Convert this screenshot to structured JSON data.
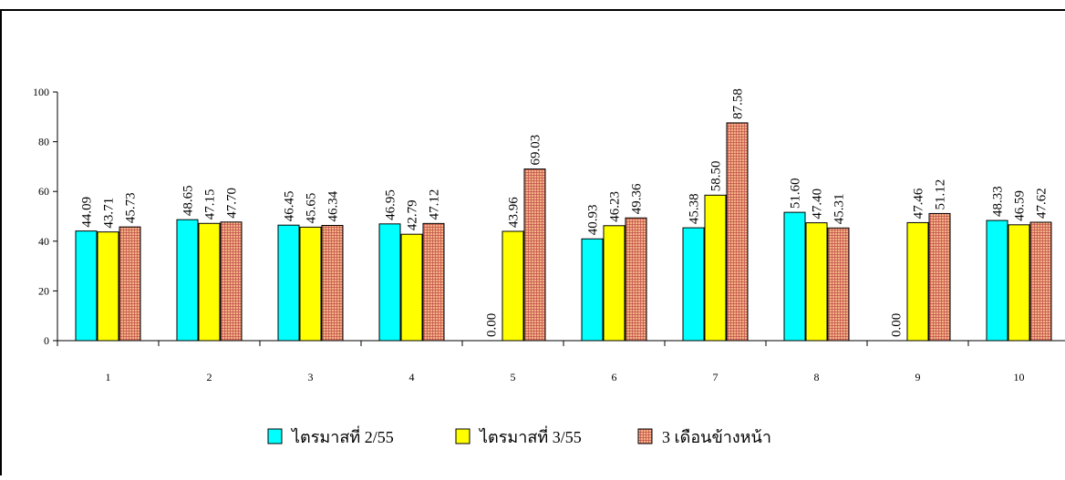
{
  "chart_data": {
    "type": "bar",
    "categories": [
      "1",
      "2",
      "3",
      "4",
      "5",
      "6",
      "7",
      "8",
      "9",
      "10"
    ],
    "series": [
      {
        "name": "ไตรมาสที่ 2/55",
        "values": [
          44.09,
          48.65,
          46.45,
          46.95,
          0.0,
          40.93,
          45.38,
          51.6,
          0.0,
          48.33
        ],
        "labels": [
          "44.09",
          "48.65",
          "46.45",
          "46.95",
          "0.00",
          "40.93",
          "45.38",
          "51.60",
          "0.00",
          "48.33"
        ],
        "color": "#00FFFF"
      },
      {
        "name": "ไตรมาสที่ 3/55",
        "values": [
          43.71,
          47.15,
          45.65,
          42.79,
          43.96,
          46.23,
          58.5,
          47.4,
          47.46,
          46.59
        ],
        "labels": [
          "43.71",
          "47.15",
          "45.65",
          "42.79",
          "43.96",
          "46.23",
          "58.50",
          "47.40",
          "47.46",
          "46.59"
        ],
        "color": "#FFFF00"
      },
      {
        "name": "3 เดือนข้างหน้า",
        "values": [
          45.73,
          47.7,
          46.34,
          47.12,
          69.03,
          49.36,
          87.58,
          45.31,
          51.12,
          47.62
        ],
        "labels": [
          "45.73",
          "47.70",
          "46.34",
          "47.12",
          "69.03",
          "49.36",
          "87.58",
          "45.31",
          "51.12",
          "47.62"
        ],
        "color": "#F4B183",
        "pattern": "grid"
      }
    ],
    "ylim": [
      0,
      100
    ],
    "yticks": [
      "0",
      "20",
      "40",
      "60",
      "80",
      "100"
    ],
    "grid": false,
    "legend_position": "bottom"
  }
}
